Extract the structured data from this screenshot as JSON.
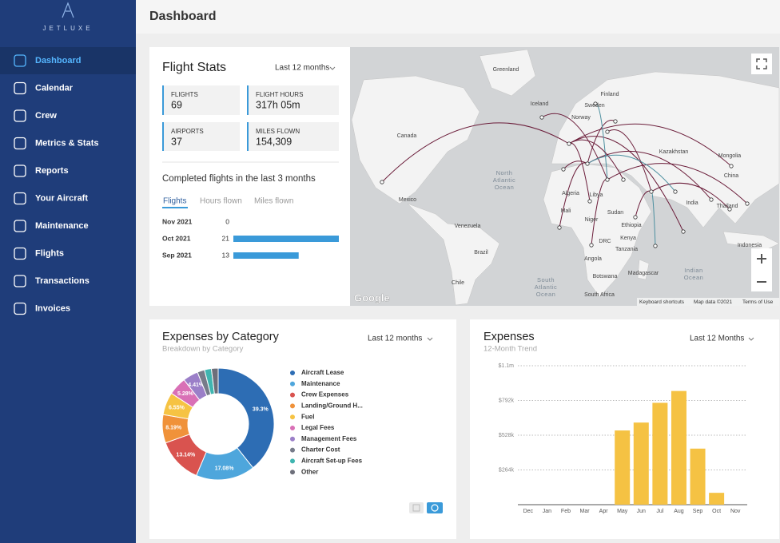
{
  "sidebar": {
    "logo": "JETLUXE",
    "nav": [
      "Dashboard",
      "Calendar",
      "Crew",
      "Metrics & Stats",
      "Reports",
      "Your Aircraft",
      "Maintenance",
      "Flights",
      "Transactions",
      "Invoices"
    ],
    "active": 0
  },
  "header": {
    "title": "Dashboard"
  },
  "flight_stats": {
    "title": "Flight Stats",
    "period": "Last 12 months",
    "stats": [
      {
        "label": "FLIGHTS",
        "value": "69"
      },
      {
        "label": "FLIGHT HOURS",
        "value": "317h 05m"
      },
      {
        "label": "AIRPORTS",
        "value": "37"
      },
      {
        "label": "MILES FLOWN",
        "value": "154,309"
      }
    ],
    "completed": {
      "title": "Completed flights in the last 3 months",
      "tabs": [
        "Flights",
        "Hours flown",
        "Miles flown"
      ],
      "active_tab": 0,
      "categories": [
        "Nov 2021",
        "Oct 2021",
        "Sep 2021"
      ],
      "values": [
        0,
        21,
        13
      ],
      "color": "#3a9ad9"
    }
  },
  "map": {
    "labels": [
      "Greenland",
      "Iceland",
      "Sweden",
      "Finland",
      "Norway",
      "Canada",
      "Kazakhstan",
      "Mongolia",
      "China",
      "Mexico",
      "Venezuela",
      "Brazil",
      "Chile",
      "Algeria",
      "Libya",
      "Mali",
      "Niger",
      "Sudan",
      "Ethiopia",
      "Kenya",
      "DRC",
      "Angola",
      "Tanzania",
      "Madagascar",
      "Botswana",
      "South Africa",
      "India",
      "Thailand",
      "Indonesia"
    ],
    "oceans": [
      [
        "North",
        "Atlantic",
        "Ocean"
      ],
      [
        "South",
        "Atlantic",
        "Ocean"
      ],
      [
        "Indian",
        "Ocean"
      ]
    ],
    "logo": "Google",
    "attribution": [
      "Keyboard shortcuts",
      "Map data ©2021",
      "Terms of Use"
    ]
  },
  "chart_data": [
    {
      "type": "donut",
      "title": "Expenses by Category",
      "subtitle": "Breakdown by Category",
      "period": "Last 12 months",
      "categories": [
        "Aircraft Lease",
        "Maintenance",
        "Crew Expenses",
        "Landing/Ground H...",
        "Fuel",
        "Legal Fees",
        "Management Fees",
        "Charter Cost",
        "Aircraft Set-up Fees",
        "Other"
      ],
      "values": [
        39.3,
        17.08,
        13.14,
        8.19,
        6.55,
        5.28,
        4.41,
        2.1,
        2.0,
        1.95
      ],
      "value_labels": [
        "39.3%",
        "17.08%",
        "13.14%",
        "8.19%",
        "6.55%",
        "5.28%",
        "4.41%",
        null,
        null,
        null
      ],
      "colors": [
        "#2d6db4",
        "#4ea6dc",
        "#d9534f",
        "#f0923a",
        "#f6c343",
        "#d970b6",
        "#9b7fc8",
        "#777c8a",
        "#3fb5b0",
        "#6d6f7a"
      ]
    },
    {
      "type": "bar",
      "title": "Expenses",
      "subtitle": "12-Month Trend",
      "period": "Last 12 Months",
      "categories": [
        "Dec",
        "Jan",
        "Feb",
        "Mar",
        "Apr",
        "May",
        "Jun",
        "Jul",
        "Aug",
        "Sep",
        "Oct",
        "Nov"
      ],
      "values": [
        0,
        0,
        0,
        0,
        0,
        564000,
        624000,
        774000,
        864000,
        426000,
        90000,
        0
      ],
      "color": "#f5c243",
      "ylim": [
        0,
        1056000
      ],
      "yticks": [
        {
          "value": 264000,
          "label": "$264k"
        },
        {
          "value": 528000,
          "label": "$528k"
        },
        {
          "value": 792000,
          "label": "$792k"
        },
        {
          "value": 1056000,
          "label": "$1.1m"
        }
      ],
      "grid": true
    }
  ]
}
